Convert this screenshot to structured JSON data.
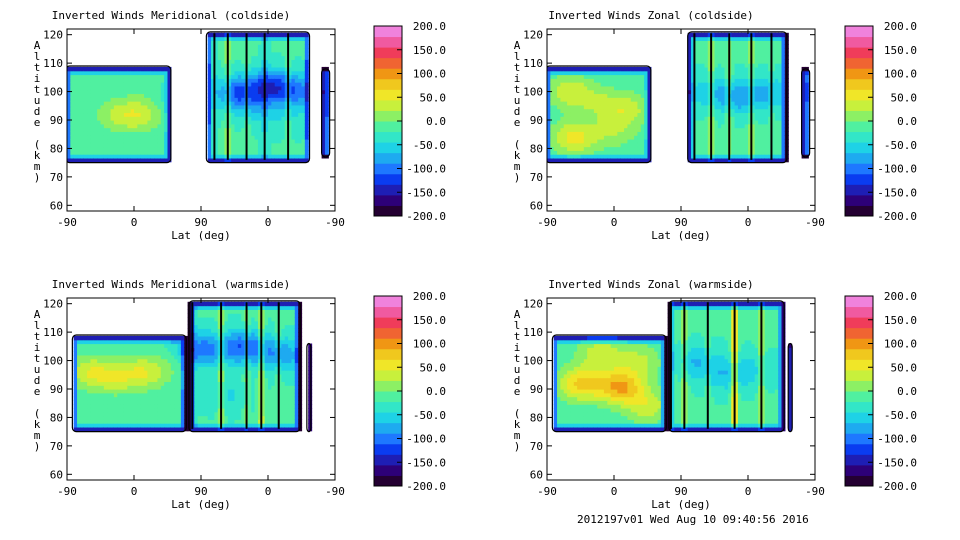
{
  "footer": "2012197v01 Wed Aug 10 09:40:56 2016",
  "palette": [
    "#240032",
    "#2d0078",
    "#1e1eb4",
    "#0a3cf0",
    "#1e78ff",
    "#1eaaf0",
    "#1ed2e6",
    "#32e6c8",
    "#50f0a0",
    "#8cf064",
    "#c8f03c",
    "#f0e628",
    "#f0c81e",
    "#f09614",
    "#f06432",
    "#f03c5a",
    "#f05aa0",
    "#f082dc"
  ],
  "chart_data": [
    {
      "type": "heatmap",
      "title": "Inverted Winds Meridional (coldside)",
      "xlabel": "Lat (deg)",
      "ylabel": "Altitude (km)",
      "xticks": [
        "-90",
        "0",
        "90",
        "0",
        "-90"
      ],
      "yticks": [
        "60",
        "70",
        "80",
        "90",
        "100",
        "110",
        "120"
      ],
      "ylim": [
        58,
        122
      ],
      "colorbar": {
        "min": -200,
        "max": 200,
        "ticks": [
          "200.0",
          "150.0",
          "100.0",
          "50.0",
          "0.0",
          "-50.0",
          "-100.0",
          "-150.0",
          "-200.0"
        ]
      },
      "blobs": [
        {
          "x": -15,
          "y": 92,
          "v": 20
        },
        {
          "x": 20,
          "y": 92,
          "v": 35
        },
        {
          "x": -60,
          "y": 98,
          "v": -20
        },
        {
          "x": 45,
          "y": 100,
          "v": -10
        },
        {
          "x": 80,
          "y": 98,
          "v": -60
        },
        {
          "x": 165,
          "y": 100,
          "v": -110
        },
        {
          "x": 215,
          "y": 102,
          "v": -120
        },
        {
          "x": 255,
          "y": 100,
          "v": -90
        },
        {
          "x": 185,
          "y": 95,
          "v": -50
        },
        {
          "x": 235,
          "y": 90,
          "v": -40
        }
      ],
      "stripes": [
        {
          "x": 130,
          "v": -10
        },
        {
          "x": 150,
          "v": 30
        },
        {
          "x": 178,
          "v": 20
        },
        {
          "x": 205,
          "v": -20
        },
        {
          "x": 240,
          "v": 25
        }
      ],
      "regions": [
        {
          "x0": -92,
          "x1": 65,
          "y0": 75,
          "y1": 109
        },
        {
          "x0": 118,
          "x1": 272,
          "y0": 75,
          "y1": 121
        },
        {
          "x0": 290,
          "x1": 302,
          "y0": 77,
          "y1": 108
        }
      ]
    },
    {
      "type": "heatmap",
      "title": "Inverted Winds Zonal (coldside)",
      "xlabel": "Lat (deg)",
      "ylabel": "Altitude (km)",
      "xticks": [
        "-90",
        "0",
        "90",
        "0",
        "-90"
      ],
      "yticks": [
        "60",
        "70",
        "80",
        "90",
        "100",
        "110",
        "120"
      ],
      "ylim": [
        58,
        122
      ],
      "colorbar": {
        "min": -200,
        "max": 200,
        "ticks": [
          "200.0",
          "150.0",
          "100.0",
          "50.0",
          "0.0",
          "-50.0",
          "-100.0",
          "-150.0",
          "-200.0"
        ]
      },
      "blobs": [
        {
          "x": -55,
          "y": 100,
          "v": 45
        },
        {
          "x": -10,
          "y": 96,
          "v": 15
        },
        {
          "x": 30,
          "y": 94,
          "v": 35
        },
        {
          "x": -50,
          "y": 84,
          "v": 60
        },
        {
          "x": 10,
          "y": 86,
          "v": 20
        },
        {
          "x": 150,
          "y": 100,
          "v": -60
        },
        {
          "x": 195,
          "y": 98,
          "v": -80
        },
        {
          "x": 240,
          "y": 100,
          "v": -70
        }
      ],
      "stripes": [
        {
          "x": 130,
          "v": 0
        },
        {
          "x": 155,
          "v": 35
        },
        {
          "x": 182,
          "v": 40
        },
        {
          "x": 215,
          "v": 30
        },
        {
          "x": 245,
          "v": 10
        }
      ],
      "regions": [
        {
          "x0": -92,
          "x1": 65,
          "y0": 75,
          "y1": 109
        },
        {
          "x0": 120,
          "x1": 268,
          "y0": 75,
          "y1": 121
        },
        {
          "x0": 290,
          "x1": 302,
          "y0": 77,
          "y1": 108
        }
      ]
    },
    {
      "type": "heatmap",
      "title": "Inverted Winds Meridional (warmside)",
      "xlabel": "Lat (deg)",
      "ylabel": "Altitude (km)",
      "xticks": [
        "-90",
        "0",
        "90",
        "0",
        "-90"
      ],
      "yticks": [
        "60",
        "70",
        "80",
        "90",
        "100",
        "110",
        "120"
      ],
      "ylim": [
        58,
        122
      ],
      "colorbar": {
        "min": -200,
        "max": 200,
        "ticks": [
          "200.0",
          "150.0",
          "100.0",
          "50.0",
          "0.0",
          "-50.0",
          "-100.0",
          "-150.0",
          "-200.0"
        ]
      },
      "blobs": [
        {
          "x": -55,
          "y": 96,
          "v": 45
        },
        {
          "x": -15,
          "y": 94,
          "v": 25
        },
        {
          "x": 25,
          "y": 96,
          "v": 40
        },
        {
          "x": 60,
          "y": 98,
          "v": -5
        },
        {
          "x": 110,
          "y": 104,
          "v": -110
        },
        {
          "x": 175,
          "y": 105,
          "v": -120
        },
        {
          "x": 230,
          "y": 102,
          "v": -90
        },
        {
          "x": 150,
          "y": 88,
          "v": -50
        }
      ],
      "stripes": [
        {
          "x": 97,
          "v": -40
        },
        {
          "x": 140,
          "v": 45
        },
        {
          "x": 178,
          "v": 30
        },
        {
          "x": 200,
          "v": 55
        },
        {
          "x": 226,
          "v": 20
        }
      ],
      "regions": [
        {
          "x0": -82,
          "x1": 88,
          "y0": 75,
          "y1": 109
        },
        {
          "x0": 92,
          "x1": 258,
          "y0": 75,
          "y1": 121
        },
        {
          "x0": 268,
          "x1": 274,
          "y0": 75,
          "y1": 106
        }
      ]
    },
    {
      "type": "heatmap",
      "title": "Inverted Winds Zonal (warmside)",
      "xlabel": "Lat (deg)",
      "ylabel": "Altitude (km)",
      "xticks": [
        "-90",
        "0",
        "90",
        "0",
        "-90"
      ],
      "yticks": [
        "60",
        "70",
        "80",
        "90",
        "100",
        "110",
        "120"
      ],
      "ylim": [
        58,
        122
      ],
      "colorbar": {
        "min": -200,
        "max": 200,
        "ticks": [
          "200.0",
          "150.0",
          "100.0",
          "50.0",
          "0.0",
          "-50.0",
          "-100.0",
          "-150.0",
          "-200.0"
        ]
      },
      "blobs": [
        {
          "x": -40,
          "y": 92,
          "v": 80
        },
        {
          "x": 20,
          "y": 91,
          "v": 100
        },
        {
          "x": -10,
          "y": 103,
          "v": 40
        },
        {
          "x": 50,
          "y": 100,
          "v": 30
        },
        {
          "x": 60,
          "y": 84,
          "v": 40
        },
        {
          "x": 130,
          "y": 100,
          "v": -70
        },
        {
          "x": 175,
          "y": 95,
          "v": -60
        },
        {
          "x": 215,
          "y": 97,
          "v": -50
        }
      ],
      "stripes": [
        {
          "x": 95,
          "v": 60
        },
        {
          "x": 115,
          "v": 40
        },
        {
          "x": 150,
          "v": 20
        },
        {
          "x": 190,
          "v": 95
        },
        {
          "x": 230,
          "v": 40
        }
      ],
      "regions": [
        {
          "x0": -82,
          "x1": 88,
          "y0": 75,
          "y1": 109
        },
        {
          "x0": 92,
          "x1": 264,
          "y0": 75,
          "y1": 121
        },
        {
          "x0": 270,
          "x1": 276,
          "y0": 75,
          "y1": 106
        }
      ]
    }
  ]
}
